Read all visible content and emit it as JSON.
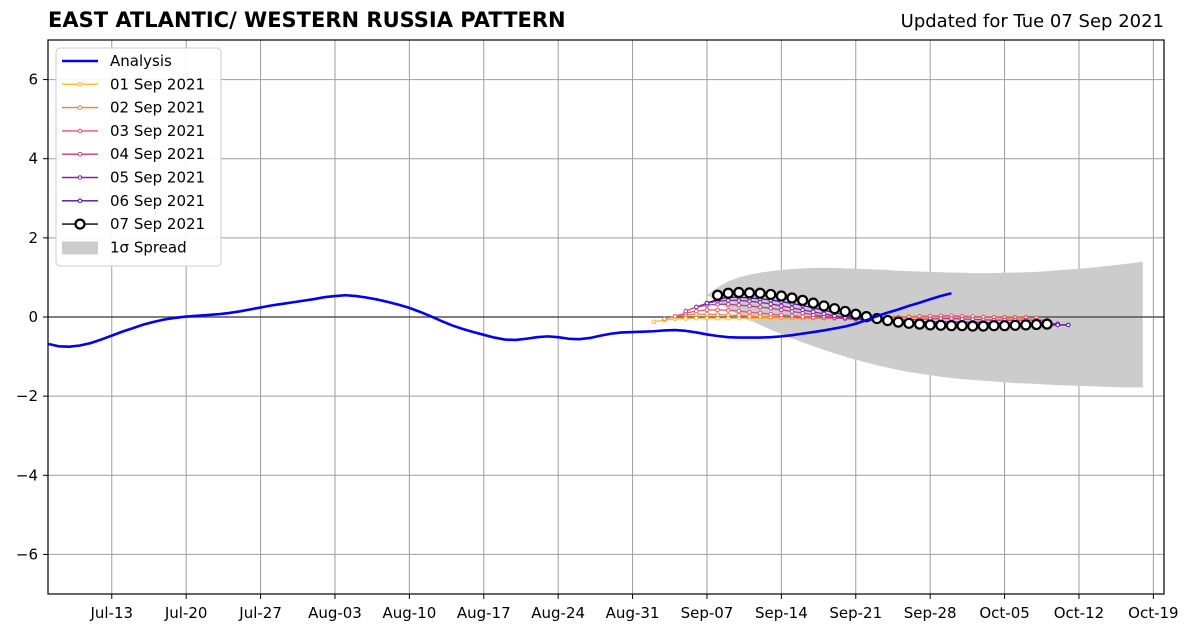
{
  "header": {
    "title": "EAST ATLANTIC/ WESTERN RUSSIA PATTERN",
    "updated": "Updated for Tue 07 Sep 2021"
  },
  "chart_data": {
    "type": "line",
    "x_axis": {
      "type": "date",
      "range": [
        "2021-07-07",
        "2021-10-20"
      ],
      "tick_dates": [
        "2021-07-13",
        "2021-07-20",
        "2021-07-27",
        "2021-08-03",
        "2021-08-10",
        "2021-08-17",
        "2021-08-24",
        "2021-08-31",
        "2021-09-07",
        "2021-09-14",
        "2021-09-21",
        "2021-09-28",
        "2021-10-05",
        "2021-10-12",
        "2021-10-19"
      ],
      "tick_labels": [
        "Jul-13",
        "Jul-20",
        "Jul-27",
        "Aug-03",
        "Aug-10",
        "Aug-17",
        "Aug-24",
        "Aug-31",
        "Sep-07",
        "Sep-14",
        "Sep-21",
        "Sep-28",
        "Oct-05",
        "Oct-12",
        "Oct-19"
      ]
    },
    "y_axis": {
      "ylim": [
        -7,
        7
      ],
      "ticks": [
        -6,
        -4,
        -2,
        0,
        2,
        4,
        6
      ],
      "tick_labels": [
        "−6",
        "−4",
        "−2",
        "0",
        "2",
        "4",
        "6"
      ]
    },
    "grid": true,
    "legend_position": "top-left",
    "zero_line": true,
    "analysis": {
      "name": "Analysis",
      "color": "#0000ee",
      "start_date": "2021-07-07",
      "values": [
        -0.68,
        -0.74,
        -0.75,
        -0.72,
        -0.66,
        -0.57,
        -0.47,
        -0.37,
        -0.28,
        -0.19,
        -0.12,
        -0.06,
        -0.02,
        0.01,
        0.03,
        0.05,
        0.07,
        0.1,
        0.14,
        0.19,
        0.24,
        0.29,
        0.33,
        0.37,
        0.41,
        0.45,
        0.5,
        0.53,
        0.55,
        0.53,
        0.49,
        0.44,
        0.38,
        0.31,
        0.23,
        0.13,
        0.02,
        -0.1,
        -0.21,
        -0.3,
        -0.38,
        -0.45,
        -0.52,
        -0.57,
        -0.58,
        -0.55,
        -0.51,
        -0.49,
        -0.51,
        -0.55,
        -0.56,
        -0.53,
        -0.47,
        -0.42,
        -0.39,
        -0.38,
        -0.37,
        -0.36,
        -0.34,
        -0.33,
        -0.35,
        -0.39,
        -0.44,
        -0.48,
        -0.51,
        -0.52,
        -0.52,
        -0.52,
        -0.51,
        -0.49,
        -0.46,
        -0.42,
        -0.38,
        -0.34,
        -0.29,
        -0.24,
        -0.17,
        -0.08,
        0.02,
        0.11,
        0.19,
        0.28,
        0.36,
        0.45,
        0.53,
        0.6
      ]
    },
    "forecasts": [
      {
        "name": "01 Sep 2021",
        "color": "#fcb92d",
        "start_date": "2021-09-02",
        "values": [
          -0.12,
          -0.08,
          -0.05,
          -0.04,
          -0.03,
          -0.03,
          -0.03,
          -0.03,
          -0.03,
          -0.03,
          -0.03,
          -0.03,
          -0.03,
          -0.03,
          -0.03,
          -0.03,
          -0.03,
          -0.03,
          -0.03,
          -0.03,
          -0.03,
          -0.03,
          -0.03,
          -0.03,
          -0.03,
          -0.02,
          -0.02,
          -0.01,
          0.0,
          0.0,
          0.0,
          0.0,
          0.0,
          0.0,
          0.0
        ]
      },
      {
        "name": "02 Sep 2021",
        "color": "#f5823c",
        "start_date": "2021-09-03",
        "values": [
          -0.05,
          0.02,
          0.05,
          0.07,
          0.07,
          0.06,
          0.05,
          0.04,
          0.02,
          0.01,
          0.0,
          -0.01,
          -0.02,
          -0.03,
          -0.03,
          -0.03,
          -0.03,
          -0.03,
          -0.02,
          -0.02,
          -0.01,
          0.0,
          0.0,
          0.01,
          0.02,
          0.02,
          0.02,
          0.02,
          0.01,
          0.01,
          0.0,
          0.0,
          0.0,
          0.0,
          0.0
        ]
      },
      {
        "name": "03 Sep 2021",
        "color": "#e8556a",
        "start_date": "2021-09-04",
        "values": [
          0.02,
          0.1,
          0.15,
          0.18,
          0.18,
          0.17,
          0.15,
          0.12,
          0.1,
          0.07,
          0.05,
          0.03,
          0.01,
          -0.01,
          -0.02,
          -0.03,
          -0.04,
          -0.04,
          -0.03,
          -0.03,
          -0.02,
          -0.01,
          0.0,
          0.01,
          0.02,
          0.03,
          0.03,
          0.02,
          0.01,
          0.0,
          -0.01,
          -0.02,
          -0.02,
          -0.02,
          -0.02
        ]
      },
      {
        "name": "04 Sep 2021",
        "color": "#b83a8f",
        "start_date": "2021-09-05",
        "values": [
          0.15,
          0.25,
          0.3,
          0.32,
          0.32,
          0.3,
          0.28,
          0.25,
          0.22,
          0.18,
          0.14,
          0.1,
          0.06,
          0.02,
          -0.01,
          -0.04,
          -0.06,
          -0.07,
          -0.08,
          -0.08,
          -0.08,
          -0.07,
          -0.06,
          -0.05,
          -0.04,
          -0.04,
          -0.05,
          -0.06,
          -0.07,
          -0.08,
          -0.08,
          -0.08,
          -0.08,
          -0.08,
          -0.08
        ]
      },
      {
        "name": "05 Sep 2021",
        "color": "#8a1fa6",
        "start_date": "2021-09-06",
        "values": [
          0.25,
          0.35,
          0.4,
          0.42,
          0.42,
          0.4,
          0.37,
          0.33,
          0.28,
          0.23,
          0.18,
          0.13,
          0.08,
          0.03,
          -0.01,
          -0.05,
          -0.08,
          -0.1,
          -0.11,
          -0.12,
          -0.12,
          -0.12,
          -0.12,
          -0.12,
          -0.12,
          -0.13,
          -0.13,
          -0.14,
          -0.15,
          -0.16,
          -0.16,
          -0.17,
          -0.17,
          -0.17,
          -0.17
        ]
      },
      {
        "name": "06 Sep 2021",
        "color": "#4a0ca0",
        "start_date": "2021-09-07",
        "values": [
          0.35,
          0.45,
          0.5,
          0.5,
          0.48,
          0.46,
          0.43,
          0.39,
          0.34,
          0.29,
          0.23,
          0.17,
          0.11,
          0.05,
          0.0,
          -0.04,
          -0.07,
          -0.1,
          -0.12,
          -0.14,
          -0.15,
          -0.16,
          -0.17,
          -0.18,
          -0.19,
          -0.2,
          -0.2,
          -0.2,
          -0.2,
          -0.2,
          -0.2,
          -0.2,
          -0.2,
          -0.2,
          -0.2
        ]
      },
      {
        "name": "07 Sep 2021",
        "color": "#000000",
        "start_date": "2021-09-08",
        "values": [
          0.55,
          0.6,
          0.62,
          0.61,
          0.6,
          0.57,
          0.53,
          0.48,
          0.42,
          0.35,
          0.28,
          0.21,
          0.14,
          0.07,
          0.01,
          -0.04,
          -0.09,
          -0.13,
          -0.16,
          -0.18,
          -0.2,
          -0.21,
          -0.22,
          -0.22,
          -0.23,
          -0.23,
          -0.22,
          -0.22,
          -0.21,
          -0.2,
          -0.19,
          -0.18
        ]
      }
    ],
    "spread": {
      "name": "1σ Spread",
      "color": "#cccccc",
      "start_date": "2021-09-07",
      "upper": [
        0.55,
        0.75,
        0.9,
        1.0,
        1.07,
        1.12,
        1.16,
        1.19,
        1.21,
        1.23,
        1.24,
        1.24,
        1.24,
        1.23,
        1.22,
        1.21,
        1.2,
        1.19,
        1.17,
        1.16,
        1.15,
        1.14,
        1.13,
        1.12,
        1.12,
        1.11,
        1.11,
        1.11,
        1.12,
        1.12,
        1.13,
        1.14,
        1.16,
        1.18,
        1.2,
        1.22,
        1.24,
        1.27,
        1.3,
        1.33,
        1.36,
        1.4
      ],
      "lower": [
        0.55,
        0.4,
        0.2,
        0.05,
        -0.08,
        -0.2,
        -0.32,
        -0.43,
        -0.54,
        -0.64,
        -0.74,
        -0.83,
        -0.92,
        -1.0,
        -1.08,
        -1.15,
        -1.22,
        -1.28,
        -1.34,
        -1.39,
        -1.43,
        -1.47,
        -1.51,
        -1.54,
        -1.57,
        -1.59,
        -1.61,
        -1.63,
        -1.65,
        -1.67,
        -1.68,
        -1.69,
        -1.71,
        -1.72,
        -1.73,
        -1.74,
        -1.75,
        -1.76,
        -1.77,
        -1.78,
        -1.78,
        -1.78
      ]
    }
  }
}
